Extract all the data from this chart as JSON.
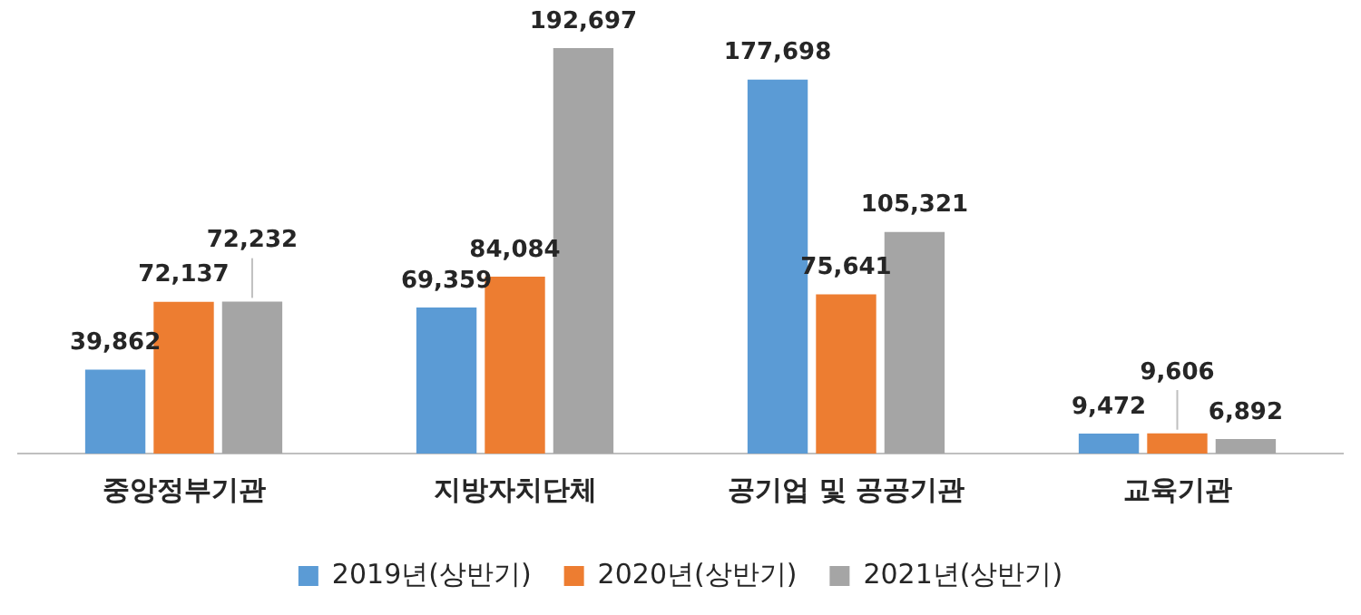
{
  "chart_data": {
    "type": "bar",
    "categories": [
      "중앙정부기관",
      "지방자치단체",
      "공기업 및 공공기관",
      "교육기관"
    ],
    "series": [
      {
        "name": "2019년(상반기)",
        "color": "#5b9bd5",
        "values": [
          39862,
          69359,
          177698,
          9472
        ],
        "value_labels": [
          "39,862",
          "69,359",
          "177,698",
          "9,472"
        ]
      },
      {
        "name": "2020년(상반기)",
        "color": "#ed7d31",
        "values": [
          72137,
          84084,
          75641,
          9606
        ],
        "value_labels": [
          "72,137",
          "84,084",
          "75,641",
          "9,606"
        ]
      },
      {
        "name": "2021년(상반기)",
        "color": "#a5a5a5",
        "values": [
          72232,
          192697,
          105321,
          6892
        ],
        "value_labels": [
          "72,232",
          "192,697",
          "105,321",
          "6,892"
        ]
      }
    ],
    "grid": false,
    "legend": "bottom",
    "tick_labels": "x"
  }
}
